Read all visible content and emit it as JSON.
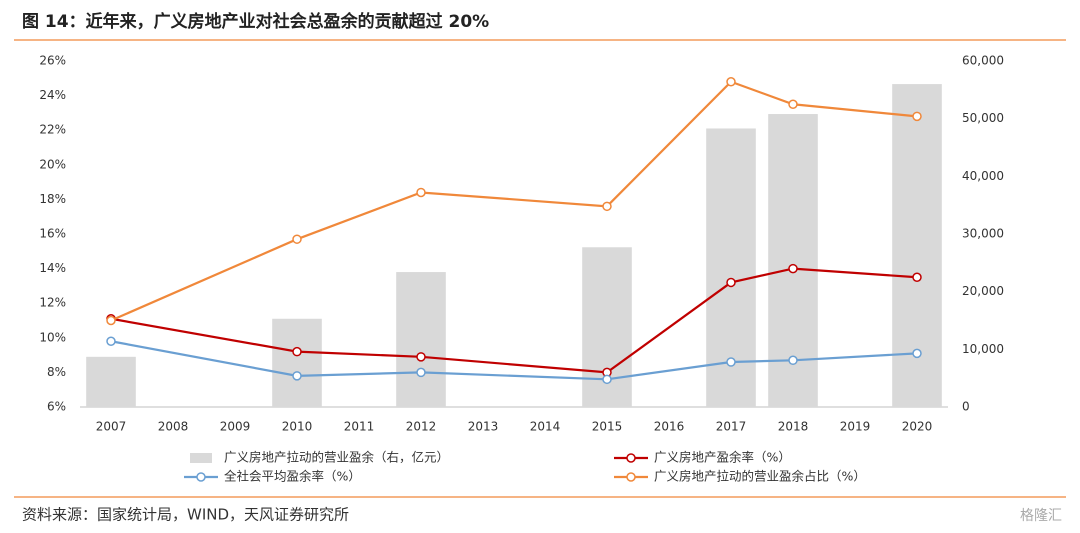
{
  "chart_data": {
    "type": "bar-line",
    "title": "图 14：近年来，广义房地产业对社会总盈余的贡献超过 20%",
    "source": "资料来源：国家统计局，WIND，天风证券研究所",
    "watermark": "格隆汇",
    "xlim": [
      2006.5,
      2020.5
    ],
    "xticks": [
      2007,
      2008,
      2009,
      2010,
      2011,
      2012,
      2013,
      2014,
      2015,
      2016,
      2017,
      2018,
      2019,
      2020
    ],
    "ylim": [
      6,
      26
    ],
    "yticks": [
      {
        "value": 6,
        "label": "6%"
      },
      {
        "value": 8,
        "label": "8%"
      },
      {
        "value": 10,
        "label": "10%"
      },
      {
        "value": 12,
        "label": "12%"
      },
      {
        "value": 14,
        "label": "14%"
      },
      {
        "value": 16,
        "label": "16%"
      },
      {
        "value": 18,
        "label": "18%"
      },
      {
        "value": 20,
        "label": "20%"
      },
      {
        "value": 22,
        "label": "22%"
      },
      {
        "value": 24,
        "label": "24%"
      },
      {
        "value": 26,
        "label": "26%"
      }
    ],
    "y2lim": [
      0,
      60000
    ],
    "y2ticks": [
      0,
      {
        "value": 10000,
        "label": "10,000"
      },
      {
        "value": 20000,
        "label": "20,000"
      },
      {
        "value": 30000,
        "label": "30,000"
      },
      {
        "value": 40000,
        "label": "40,000"
      },
      {
        "value": 50000,
        "label": "50,000"
      },
      {
        "value": 60000,
        "label": "60,000"
      }
    ],
    "series": [
      {
        "name": "广义房地产拉动的营业盈余（右，亿元）",
        "type": "bar",
        "axis": "y2",
        "color": "#d9d9d9",
        "x": [
          2007,
          2010,
          2012,
          2015,
          2017,
          2018,
          2020
        ],
        "values": [
          8700,
          15300,
          23400,
          27700,
          48300,
          50800,
          56000
        ]
      },
      {
        "name": "广义房地产盈余率（%）",
        "type": "line",
        "color": "#c00000",
        "x": [
          2007,
          2010,
          2012,
          2015,
          2017,
          2018,
          2020
        ],
        "values": [
          11.1,
          9.2,
          8.9,
          8.0,
          13.2,
          14.0,
          13.5
        ]
      },
      {
        "name": "全社会平均盈余率（%）",
        "type": "line",
        "color": "#6a9fd2",
        "x": [
          2007,
          2010,
          2012,
          2015,
          2017,
          2018,
          2020
        ],
        "values": [
          9.8,
          7.8,
          8.0,
          7.6,
          8.6,
          8.7,
          9.1
        ]
      },
      {
        "name": "广义房地产拉动的营业盈余占比（%）",
        "type": "line",
        "color": "#f0883a",
        "x": [
          2007,
          2010,
          2012,
          2015,
          2017,
          2018,
          2020
        ],
        "values": [
          11.0,
          15.7,
          18.4,
          17.6,
          24.8,
          23.5,
          22.8
        ]
      }
    ]
  }
}
